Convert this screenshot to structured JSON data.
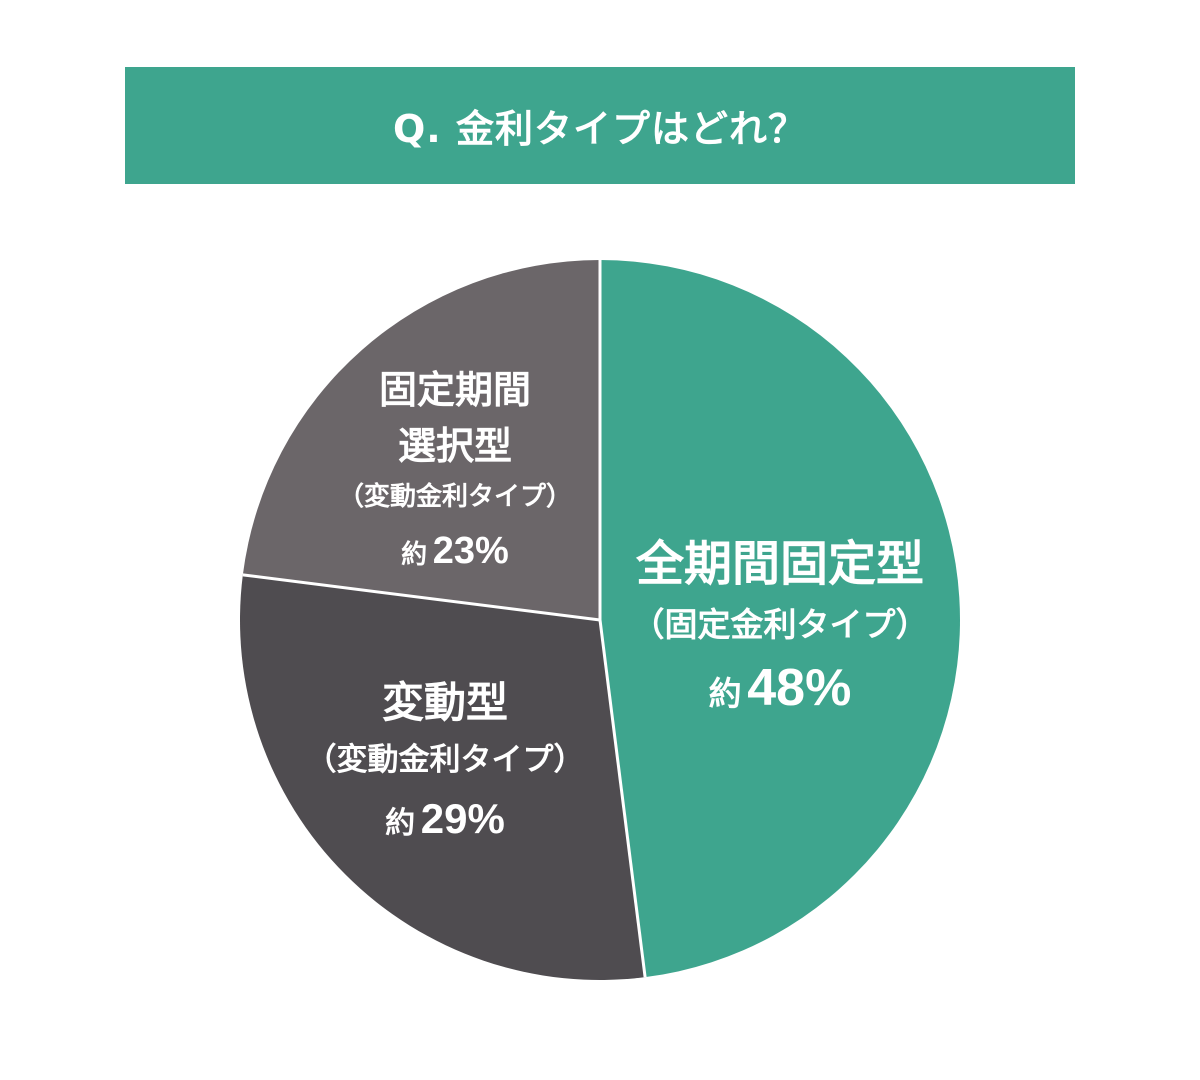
{
  "title": "Q. 金利タイプはどれ？",
  "colors": {
    "title_bg": "#3ea58e",
    "fixed": "#3ea58e",
    "variable": "#4f4c50",
    "period": "#6b6669",
    "divider": "#ffffff"
  },
  "chart_data": {
    "type": "pie",
    "title": "Q. 金利タイプはどれ？",
    "start": "12 o'clock, clockwise",
    "slices": [
      {
        "key": "fixed",
        "name": "全期間固定型",
        "sub": "（固定金利タイプ）",
        "approx": "約",
        "value": 48,
        "pct_text": "48%"
      },
      {
        "key": "variable",
        "name": "変動型",
        "sub": "（変動金利タイプ）",
        "approx": "約",
        "value": 29,
        "pct_text": "29%"
      },
      {
        "key": "period",
        "name_line1": "固定期間",
        "name_line2": "選択型",
        "sub": "（変動金利タイプ）",
        "approx": "約",
        "value": 23,
        "pct_text": "23%"
      }
    ]
  }
}
